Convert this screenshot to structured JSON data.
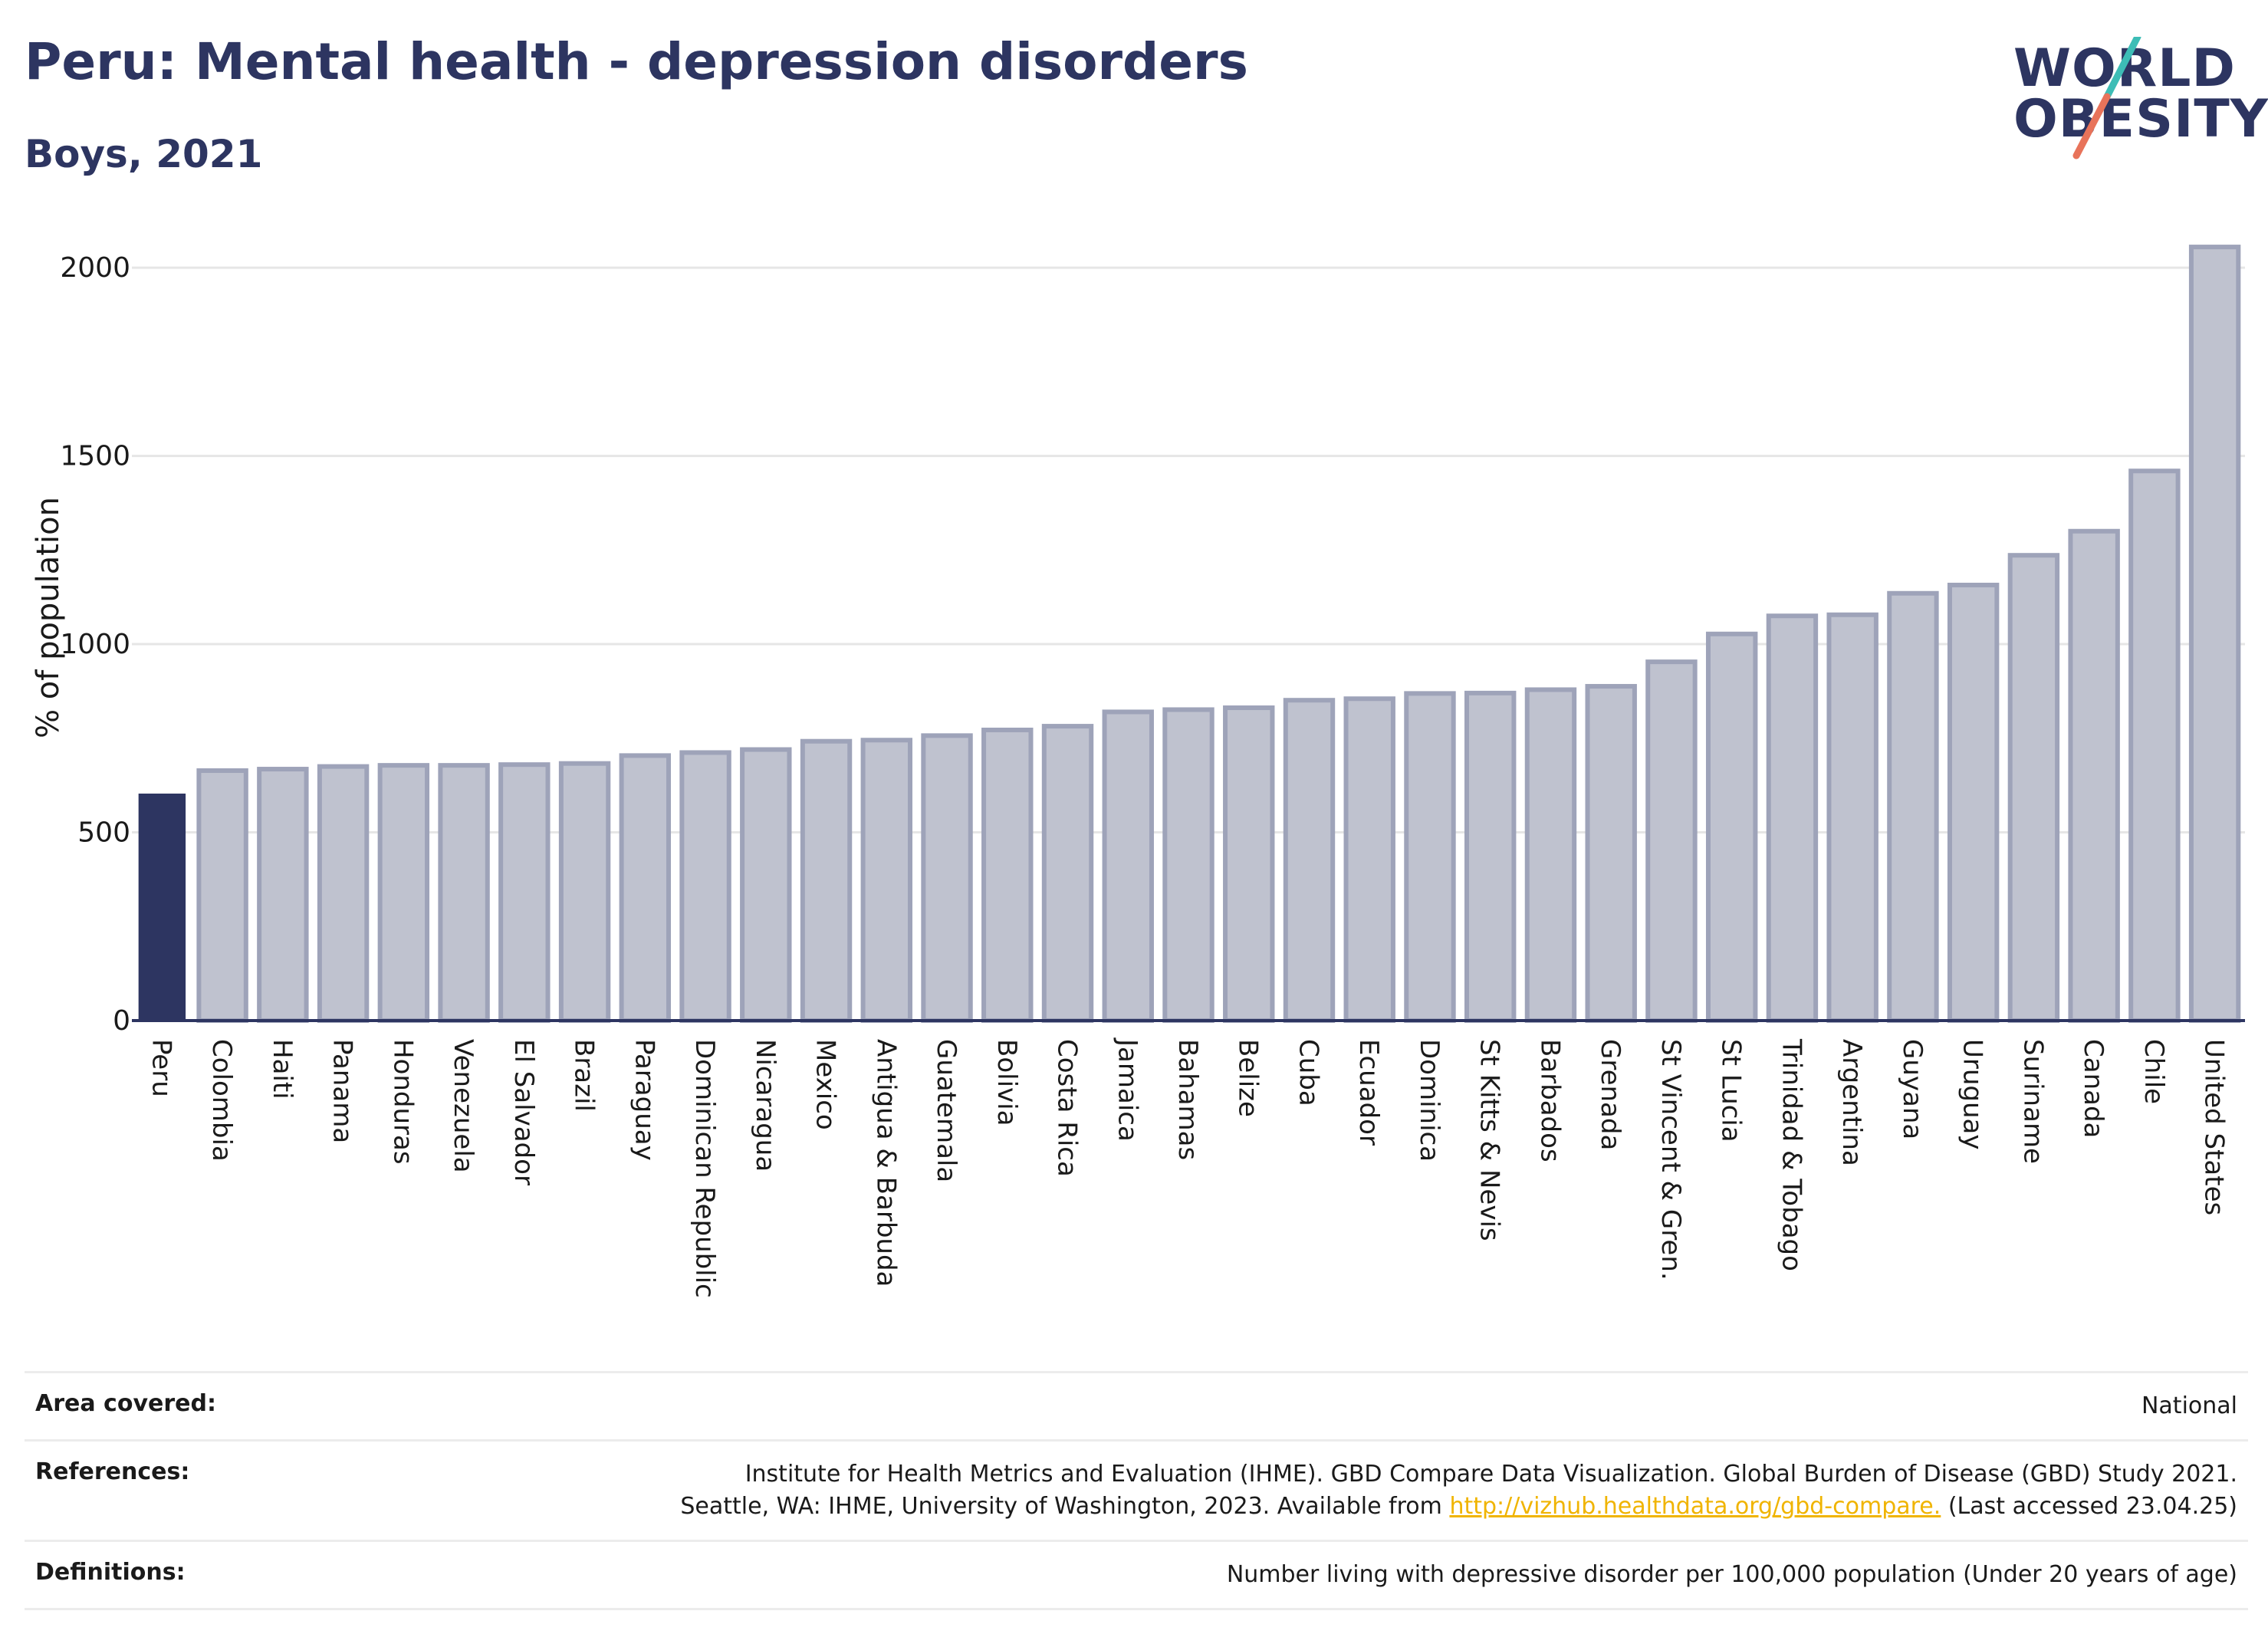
{
  "header": {
    "title": "Peru: Mental health - depression disorders",
    "subtitle": "Boys, 2021"
  },
  "logo": {
    "line1": "WORLD",
    "line2": "OBESITY",
    "colors": {
      "text": "#2d3561",
      "slash_top": "#3dbdb6",
      "slash_bottom": "#e8735a"
    }
  },
  "chart_data": {
    "type": "bar",
    "ylabel": "% of population",
    "xlabel": "",
    "ylim": [
      0,
      2100
    ],
    "yticks": [
      0,
      500,
      1000,
      1500,
      2000
    ],
    "grid": true,
    "highlight": "Peru",
    "colors": {
      "highlight": "#2d3561",
      "bar_fill": "#bfc2cf",
      "bar_stroke": "#9ea3b9"
    },
    "categories": [
      "Peru",
      "Colombia",
      "Haiti",
      "Panama",
      "Honduras",
      "Venezuela",
      "El Salvador",
      "Brazil",
      "Paraguay",
      "Dominican Republic",
      "Nicaragua",
      "Mexico",
      "Antigua & Barbuda",
      "Guatemala",
      "Bolivia",
      "Costa Rica",
      "Jamaica",
      "Bahamas",
      "Belize",
      "Cuba",
      "Ecuador",
      "Dominica",
      "St Kitts & Nevis",
      "Barbados",
      "Grenada",
      "St Vincent & Gren.",
      "St Lucia",
      "Trinidad & Tobago",
      "Argentina",
      "Guyana",
      "Uruguay",
      "Suriname",
      "Canada",
      "Chile",
      "United States"
    ],
    "values": [
      603,
      664,
      668,
      675,
      678,
      678,
      680,
      683,
      704,
      712,
      720,
      742,
      745,
      757,
      772,
      782,
      820,
      826,
      831,
      851,
      855,
      869,
      870,
      879,
      888,
      953,
      1027,
      1075,
      1078,
      1135,
      1157,
      1236,
      1300,
      1460,
      2055
    ]
  },
  "footer": {
    "area_label": "Area covered:",
    "area_value": "National",
    "references_label": "References:",
    "references_line1": "Institute for Health Metrics and Evaluation (IHME). GBD Compare Data Visualization. Global Burden of Disease (GBD) Study 2021.",
    "references_line2_pre": "Seattle, WA: IHME, University of Washington, 2023. Available from",
    "references_link": "http://vizhub.healthdata.org/gbd-compare.",
    "references_line2_post": "(Last accessed 23.04.25)",
    "definitions_label": "Definitions:",
    "definitions_value": "Number living with depressive disorder per 100,000 population (Under 20 years of age)"
  }
}
